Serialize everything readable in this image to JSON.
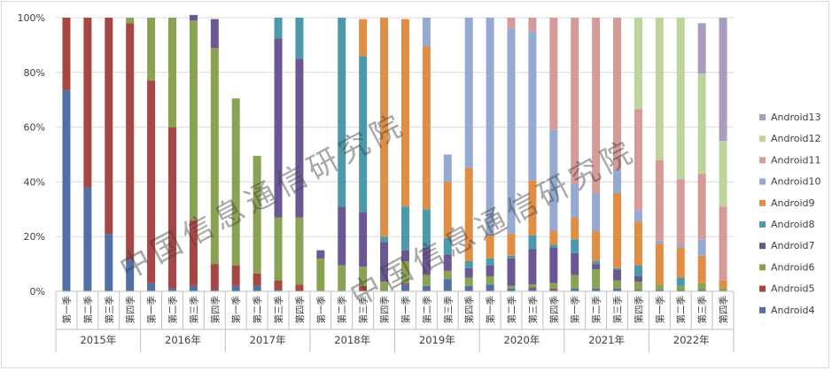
{
  "chart_data": {
    "type": "bar",
    "stacked": "percent",
    "watermark": "中国信息通信研究院",
    "y_ticks": [
      "0%",
      "20%",
      "40%",
      "60%",
      "80%",
      "100%"
    ],
    "ylim": [
      0,
      100
    ],
    "years": [
      "2015年",
      "2016年",
      "2017年",
      "2018年",
      "2019年",
      "2020年",
      "2021年",
      "2022年"
    ],
    "quarters": [
      "第一季",
      "第二季",
      "第三季",
      "第四季"
    ],
    "legend_position": "right",
    "series": [
      {
        "name": "Android4",
        "color": "#4f71a6",
        "values": [
          73.5,
          38,
          21,
          11.5,
          3,
          1,
          2,
          0.5,
          2,
          2,
          0.5,
          0,
          0,
          0,
          0,
          0,
          2.5,
          2,
          4.5,
          2,
          2.5,
          1,
          1,
          0.5,
          1,
          1,
          1,
          0.5,
          0.5,
          0.5,
          0.5,
          0
        ]
      },
      {
        "name": "Android5",
        "color": "#a74744",
        "values": [
          26.5,
          62,
          79,
          86.5,
          74,
          59,
          24,
          9.5,
          7.5,
          4.5,
          3.5,
          2.5,
          0,
          0,
          2,
          0,
          0.5,
          0,
          0,
          0,
          0,
          0,
          0.5,
          0.5,
          0,
          0,
          0,
          0,
          0,
          0,
          0,
          0
        ]
      },
      {
        "name": "Android6",
        "color": "#8aa353",
        "values": [
          0,
          0,
          0,
          2,
          23,
          40,
          73,
          79,
          61,
          43,
          23,
          24.5,
          12,
          9.5,
          7,
          3.5,
          8,
          4,
          3,
          3,
          3,
          1,
          1,
          2,
          5,
          7,
          3,
          3,
          2,
          1.5,
          2.5,
          1
        ]
      },
      {
        "name": "Android7",
        "color": "#6b5793",
        "values": [
          0,
          0,
          0,
          0,
          0,
          0,
          2,
          10.5,
          0,
          0,
          65.5,
          58,
          3,
          21.5,
          20,
          14.5,
          4,
          10,
          6,
          3.5,
          4,
          10,
          13,
          13,
          8,
          2,
          4,
          2,
          0,
          0,
          0,
          0
        ]
      },
      {
        "name": "Android8",
        "color": "#4a9aab",
        "values": [
          0,
          0,
          0,
          0,
          0,
          0,
          0,
          0,
          0,
          0,
          7.5,
          15,
          0,
          69,
          57,
          2,
          16,
          14,
          6,
          2.5,
          2.5,
          1,
          5,
          1,
          5,
          1,
          0.5,
          4,
          0,
          3,
          0,
          0
        ]
      },
      {
        "name": "Android9",
        "color": "#e08e46",
        "values": [
          0,
          0,
          0,
          0,
          0,
          0,
          0,
          0,
          0,
          0,
          0,
          0,
          0,
          0,
          13.5,
          80,
          68.5,
          59.5,
          20.5,
          34,
          8.5,
          8,
          20,
          5,
          8,
          11,
          27.5,
          16,
          15,
          11,
          10,
          3
        ]
      },
      {
        "name": "Android10",
        "color": "#96a9d2",
        "values": [
          0,
          0,
          0,
          0,
          0,
          0,
          0,
          0,
          0,
          0,
          0,
          0,
          0,
          0,
          0,
          0,
          0,
          10.5,
          10,
          55,
          79.5,
          75,
          54.5,
          37,
          12,
          14,
          8.5,
          4,
          1,
          1,
          6,
          0
        ]
      },
      {
        "name": "Android11",
        "color": "#d49b99",
        "values": [
          0,
          0,
          0,
          0,
          0,
          0,
          0,
          0,
          0,
          0,
          0,
          0,
          0,
          0,
          0,
          0,
          0,
          0,
          0,
          0,
          0,
          4,
          5,
          41,
          61,
          64,
          55.5,
          37,
          29.5,
          24,
          24,
          27
        ]
      },
      {
        "name": "Android12",
        "color": "#bfd39d",
        "values": [
          0,
          0,
          0,
          0,
          0,
          0,
          0,
          0,
          0,
          0,
          0,
          0,
          0,
          0,
          0,
          0,
          0,
          0,
          0,
          0,
          0,
          0,
          0,
          0,
          0,
          0,
          0,
          33.5,
          52,
          59,
          36.5,
          24
        ]
      },
      {
        "name": "Android13",
        "color": "#a99cbd",
        "values": [
          0,
          0,
          0,
          0,
          0,
          0,
          0,
          0,
          0,
          0,
          0,
          0,
          0,
          0,
          0,
          0,
          0,
          0,
          0,
          0,
          0,
          0,
          0,
          0,
          0,
          0,
          0,
          0,
          0,
          0,
          18.5,
          45
        ]
      }
    ]
  }
}
